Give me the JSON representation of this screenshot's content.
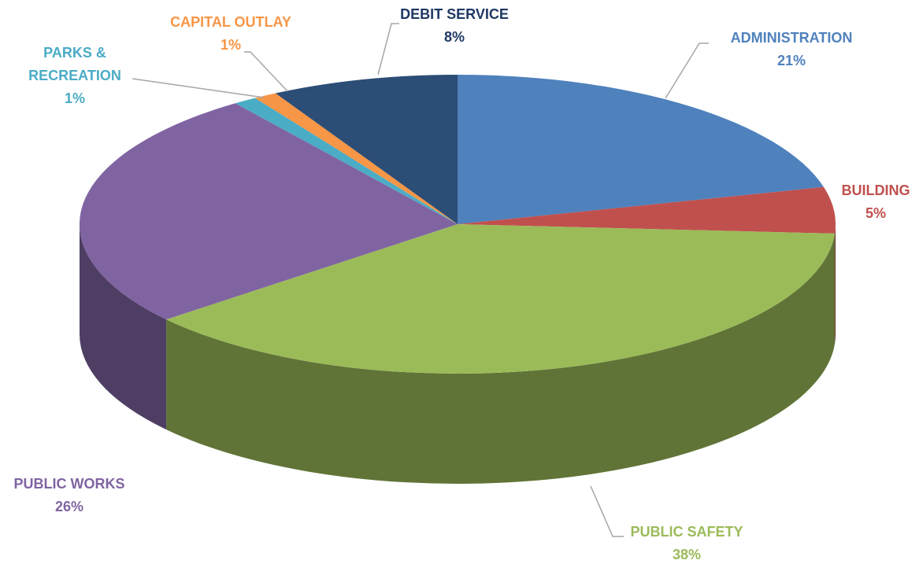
{
  "chart_data": {
    "type": "pie",
    "categories": [
      "ADMINISTRATION",
      "BUILDING",
      "PUBLIC SAFETY",
      "PUBLIC WORKS",
      "PARKS & RECREATION",
      "CAPITAL OUTLAY",
      "DEBIT SERVICE"
    ],
    "values": [
      21,
      5,
      38,
      26,
      1,
      1,
      8
    ],
    "value_labels": [
      "21%",
      "5%",
      "38%",
      "26%",
      "1%",
      "1%",
      "8%"
    ],
    "colors": [
      "#4f81bd",
      "#c0504d",
      "#9bbb59",
      "#8064a2",
      "#4bacc6",
      "#f79646",
      "#2c4d75"
    ]
  }
}
